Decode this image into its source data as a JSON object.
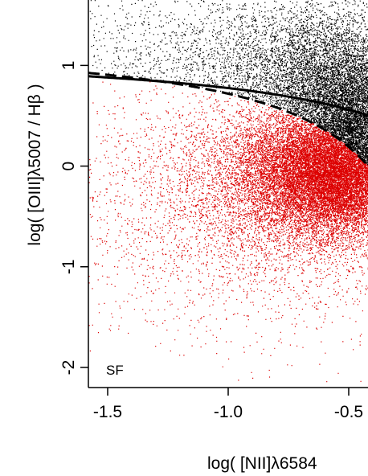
{
  "chart_data": {
    "type": "scatter",
    "title": "",
    "xlabel": "log( [NII]λ6584",
    "ylabel": "log( [OIII]λ5007 / Hβ )",
    "xlim": [
      -1.58,
      -0.42
    ],
    "ylim": [
      -2.2,
      1.65
    ],
    "xticks": [
      -1.5,
      -1.0,
      -0.5
    ],
    "xtick_labels": [
      "-1.5",
      "-1.0",
      "-0.5"
    ],
    "yticks": [
      -2,
      -1,
      0,
      1
    ],
    "ytick_labels": [
      "-2",
      "-1",
      "0",
      "1"
    ],
    "annotations": [
      {
        "text": "SF"
      }
    ],
    "series": [
      {
        "color": "#000000",
        "marker": "dot",
        "description": "points above the dashed demarcation",
        "approx_points": 9000
      },
      {
        "color": "#dd0000",
        "marker": "dot",
        "description": "points below the dashed demarcation",
        "approx_points": 18000
      },
      {
        "color": "#000000",
        "style": "solid",
        "formula": "0.61/(x-0.47)+1.19"
      },
      {
        "color": "#000000",
        "style": "dashed",
        "formula": "0.61/(x-0.05)+1.3"
      }
    ],
    "grid": false,
    "legend": "none"
  }
}
